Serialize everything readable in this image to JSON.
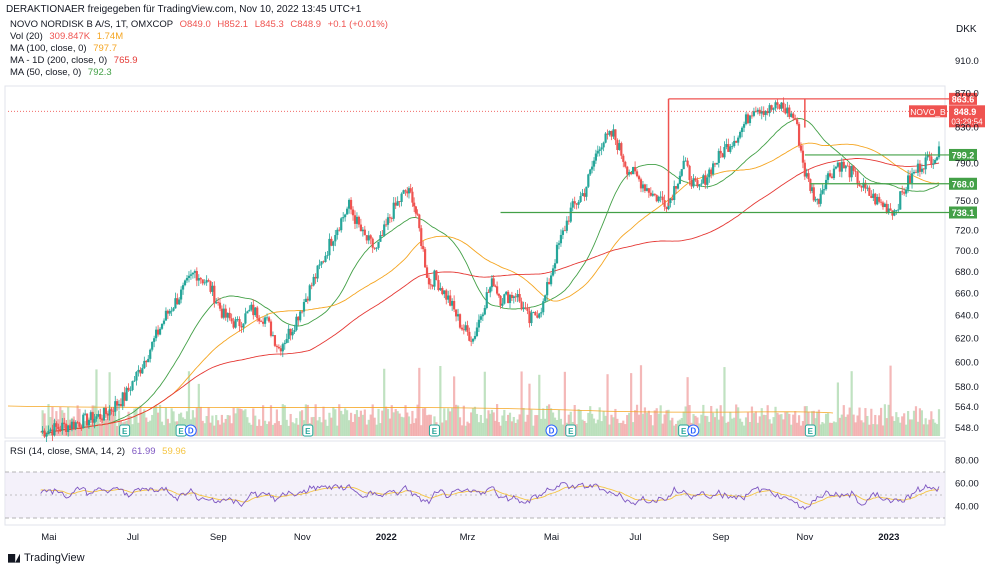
{
  "header": {
    "attribution": "DERAKTIONAER freigegeben für TradingView.com, Nov 10, 2022 13:45 UTC+1",
    "currency": "DKK"
  },
  "info_lines": [
    {
      "label": "NOVO NORDISK B A/S, 1T, OMXCOP",
      "values": [
        "O849.0",
        "H852.1",
        "L845.3",
        "C848.9",
        "+0.1 (+0.01%)"
      ],
      "color": "#ef5350"
    },
    {
      "label": "Vol (20)",
      "values": [
        "309.847K",
        "1.74M"
      ],
      "color": "#ef5350"
    },
    {
      "label": "MA (100, close, 0)",
      "values": [
        "797.7"
      ],
      "color": "#f5a623"
    },
    {
      "label": "MA - 1D (200, close, 0)",
      "values": [
        "765.9"
      ],
      "color": "#e53935"
    },
    {
      "label": "MA (50, close, 0)",
      "values": [
        "792.3"
      ],
      "color": "#43a047"
    }
  ],
  "rsi_info": {
    "label": "RSI (14, close, SMA, 14, 2)",
    "values": [
      "61.99",
      "59.96"
    ]
  },
  "branding": "TradingView",
  "chart_data": {
    "type": "candlestick",
    "symbol": "NOVO_B",
    "y_axis": {
      "ticks": [
        "910.0",
        "870.0",
        "830.0",
        "790.0",
        "750.0",
        "720.0",
        "700.0",
        "680.0",
        "660.0",
        "640.0",
        "620.0",
        "600.0",
        "580.0",
        "564.0",
        "548.0"
      ],
      "scale": "log"
    },
    "x_axis": {
      "ticks": [
        "Mai",
        "Jul",
        "Sep",
        "Nov",
        "2022",
        "Mrz",
        "Mai",
        "Jul",
        "Sep",
        "Nov",
        "2023"
      ]
    },
    "last_price": {
      "value": "848.9",
      "label": "NOVO_B",
      "countdown": "03:29:54",
      "color": "#ef5350"
    },
    "levels": [
      {
        "value": "863.6",
        "color": "#ef5350"
      },
      {
        "value": "799.2",
        "color": "#43a047"
      },
      {
        "value": "768.0",
        "color": "#43a047"
      },
      {
        "value": "738.1",
        "color": "#43a047"
      }
    ],
    "close_path": [
      [
        "2021-04-25",
        545
      ],
      [
        "2021-05-15",
        550
      ],
      [
        "2021-06-10",
        558
      ],
      [
        "2021-06-25",
        572
      ],
      [
        "2021-07-05",
        592
      ],
      [
        "2021-07-15",
        615
      ],
      [
        "2021-07-25",
        640
      ],
      [
        "2021-08-05",
        660
      ],
      [
        "2021-08-15",
        680
      ],
      [
        "2021-08-25",
        668
      ],
      [
        "2021-09-05",
        640
      ],
      [
        "2021-09-15",
        632
      ],
      [
        "2021-09-25",
        645
      ],
      [
        "2021-10-05",
        638
      ],
      [
        "2021-10-15",
        612
      ],
      [
        "2021-10-25",
        630
      ],
      [
        "2021-11-05",
        660
      ],
      [
        "2021-11-15",
        688
      ],
      [
        "2021-11-25",
        720
      ],
      [
        "2021-12-05",
        745
      ],
      [
        "2021-12-15",
        715
      ],
      [
        "2021-12-25",
        700
      ],
      [
        "2022-01-05",
        738
      ],
      [
        "2022-01-15",
        760
      ],
      [
        "2022-01-20",
        755
      ],
      [
        "2022-01-25",
        720
      ],
      [
        "2022-02-01",
        668
      ],
      [
        "2022-02-05",
        675
      ],
      [
        "2022-02-15",
        655
      ],
      [
        "2022-02-25",
        630
      ],
      [
        "2022-03-05",
        620
      ],
      [
        "2022-03-15",
        658
      ],
      [
        "2022-03-20",
        672
      ],
      [
        "2022-03-25",
        655
      ],
      [
        "2022-04-05",
        660
      ],
      [
        "2022-04-15",
        635
      ],
      [
        "2022-04-25",
        650
      ],
      [
        "2022-05-05",
        700
      ],
      [
        "2022-05-15",
        740
      ],
      [
        "2022-05-25",
        760
      ],
      [
        "2022-06-05",
        812
      ],
      [
        "2022-06-15",
        822
      ],
      [
        "2022-06-25",
        785
      ],
      [
        "2022-07-05",
        770
      ],
      [
        "2022-07-15",
        755
      ],
      [
        "2022-07-25",
        748
      ],
      [
        "2022-08-05",
        790
      ],
      [
        "2022-08-15",
        760
      ],
      [
        "2022-08-25",
        785
      ],
      [
        "2022-09-05",
        808
      ],
      [
        "2022-09-15",
        825
      ],
      [
        "2022-09-25",
        855
      ],
      [
        "2022-10-05",
        850
      ],
      [
        "2022-10-15",
        855
      ],
      [
        "2022-10-25",
        840
      ],
      [
        "2022-11-01",
        780
      ],
      [
        "2022-11-05",
        765
      ],
      [
        "2022-11-10",
        748
      ],
      [
        "2022-11-15",
        770
      ],
      [
        "2022-11-25",
        790
      ],
      [
        "2022-12-05",
        780
      ],
      [
        "2022-12-15",
        760
      ],
      [
        "2022-12-25",
        748
      ],
      [
        "2023-01-05",
        740
      ],
      [
        "2023-01-15",
        770
      ],
      [
        "2023-01-25",
        790
      ],
      [
        "2023-02-05",
        800
      ],
      [
        "2023-02-15",
        805
      ],
      [
        "2023-02-25",
        812
      ],
      [
        "2023-03-05",
        815
      ],
      [
        "2023-03-15",
        855
      ],
      [
        "2023-03-25",
        849
      ]
    ],
    "rsi": {
      "ticks": [
        "80.00",
        "60.00",
        "40.00"
      ],
      "bands": [
        70,
        50,
        30
      ],
      "last_rsi": 61.99,
      "last_sma": 59.96
    },
    "event_markers": [
      "E",
      "E",
      "D",
      "E",
      "E",
      "D",
      "E",
      "E",
      "D",
      "E"
    ]
  }
}
